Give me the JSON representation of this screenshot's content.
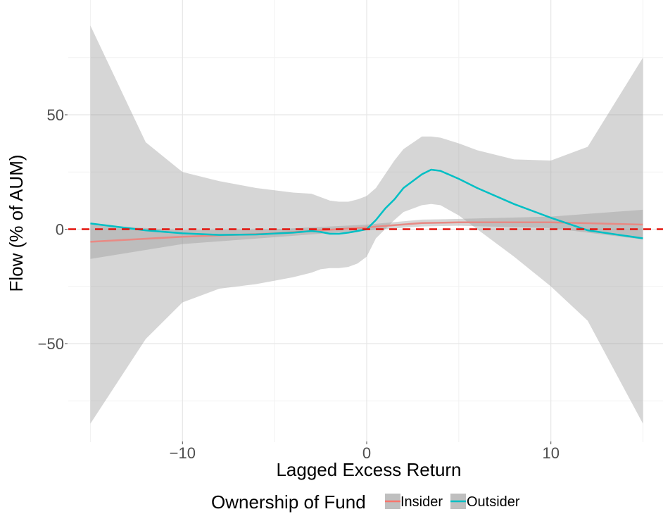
{
  "chart_data": {
    "type": "line",
    "xlabel": "Lagged Excess Return",
    "ylabel": "Flow (% of AUM)",
    "xlim": [
      -15,
      15
    ],
    "ylim": [
      -92,
      97
    ],
    "x_ticks": [
      -10,
      0,
      10
    ],
    "x_tick_labels": [
      "−10",
      "0",
      "10"
    ],
    "y_ticks": [
      -50,
      0,
      50
    ],
    "y_tick_labels": [
      "−50",
      "0",
      "50"
    ],
    "x_minor_grid": [
      -15,
      -5,
      5,
      15
    ],
    "y_minor_grid": [
      -75,
      -25,
      25,
      75
    ],
    "grid": true,
    "reference_line": {
      "y": 0,
      "color": "#e3120b",
      "style": "dashed"
    },
    "legend": {
      "title": "Ownership of Fund",
      "position": "bottom",
      "entries": [
        {
          "label": "Insider",
          "color": "#f8766d"
        },
        {
          "label": "Outsider",
          "color": "#00bfc4"
        }
      ]
    },
    "series": [
      {
        "name": "Insider",
        "color": "#e88a84",
        "x": [
          -15,
          -10,
          -5,
          0,
          3,
          5,
          10,
          15
        ],
        "y": [
          -5.5,
          -3.3,
          -1.8,
          0.8,
          2.7,
          3.0,
          3.0,
          2.0
        ],
        "ci_lower": [
          -13,
          -6.5,
          -3.5,
          -0.5,
          1.2,
          1.5,
          0.5,
          -4.5
        ],
        "ci_upper": [
          2,
          -0.5,
          0,
          2,
          4.2,
          4.5,
          5.5,
          8.5
        ]
      },
      {
        "name": "Outsider",
        "color": "#00bfc4",
        "x": [
          -15,
          -12,
          -10,
          -8,
          -6,
          -4,
          -3,
          -2.5,
          -2,
          -1.5,
          -1,
          -0.5,
          0,
          0.5,
          1,
          1.5,
          2,
          3,
          3.5,
          4,
          5,
          6,
          8,
          10,
          12,
          15
        ],
        "y": [
          2.5,
          -0.5,
          -1.8,
          -2.5,
          -2.3,
          -1.5,
          -0.8,
          -1.2,
          -2.0,
          -2.0,
          -1.5,
          -0.8,
          0,
          4,
          9,
          13,
          18,
          24,
          26,
          25.5,
          22,
          18,
          11,
          5,
          -0.5,
          -4
        ],
        "ci_lower": [
          -85,
          -48,
          -32,
          -26,
          -24,
          -21,
          -19,
          -17.5,
          -17,
          -17,
          -16.5,
          -15,
          -12,
          -4,
          0,
          4,
          7.5,
          10.5,
          11,
          10.5,
          6,
          0,
          -12,
          -25,
          -40,
          -85
        ],
        "ci_upper": [
          89,
          38,
          25,
          21,
          18,
          16,
          15.5,
          14,
          12.5,
          12,
          12,
          13,
          14.5,
          18,
          24,
          30,
          35,
          40.5,
          40.5,
          40,
          37.5,
          34.5,
          30.5,
          30,
          36,
          75
        ]
      }
    ]
  }
}
